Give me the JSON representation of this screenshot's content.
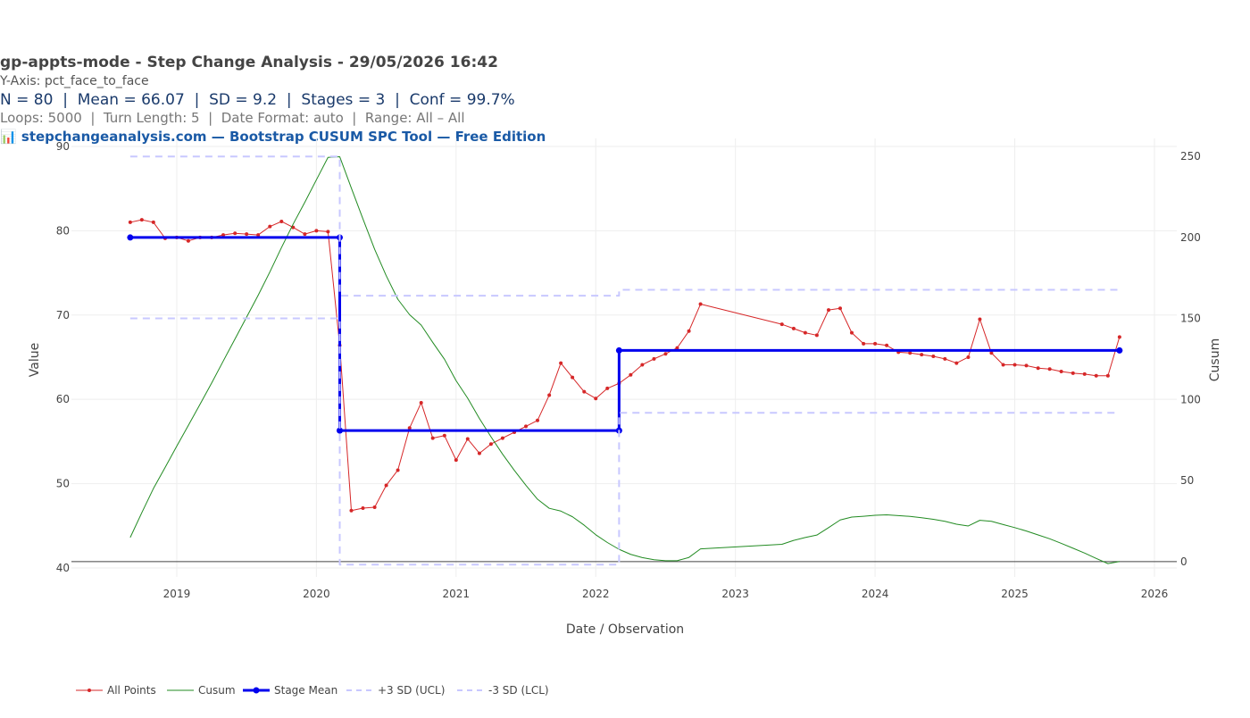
{
  "chart_data": {
    "type": "line",
    "title": "gp-appts-mode - Step Change Analysis - 29/05/2026 16:42",
    "subtitles": [
      "Y-Axis: pct_face_to_face",
      "N = 80  |  Mean = 66.07  |  SD = 9.2  |  Stages = 3  |  Conf = 99.7%",
      "Loops: 5000  |  Turn Length: 5  |  Date Format: auto  |  Range: All – All",
      "📊 stepchangeanalysis.com — Bootstrap CUSUM SPC Tool — Free Edition"
    ],
    "x_label": "Date / Observation",
    "y_label": "Value",
    "y2_label": "Cusum",
    "x": [
      2018.667,
      2018.75,
      2018.833,
      2018.917,
      2019,
      2019.083,
      2019.167,
      2019.25,
      2019.333,
      2019.417,
      2019.5,
      2019.583,
      2019.667,
      2019.75,
      2019.833,
      2019.917,
      2020,
      2020.083,
      2020.167,
      2020.25,
      2020.333,
      2020.417,
      2020.5,
      2020.583,
      2020.667,
      2020.75,
      2020.833,
      2020.917,
      2021,
      2021.083,
      2021.167,
      2021.25,
      2021.333,
      2021.417,
      2021.5,
      2021.583,
      2021.667,
      2021.75,
      2021.833,
      2021.917,
      2022,
      2022.083,
      2022.167,
      2022.25,
      2022.333,
      2022.417,
      2022.5,
      2022.583,
      2022.667,
      2022.75,
      2023.333,
      2023.417,
      2023.5,
      2023.583,
      2023.667,
      2023.75,
      2023.833,
      2023.917,
      2024,
      2024.083,
      2024.167,
      2024.25,
      2024.333,
      2024.417,
      2024.5,
      2024.583,
      2024.667,
      2024.75,
      2024.833,
      2024.917,
      2025,
      2025.083,
      2025.167,
      2025.25,
      2025.333,
      2025.417,
      2025.5,
      2025.583,
      2025.667,
      2025.75
    ],
    "series": [
      {
        "name": "All Points",
        "color": "#d62728",
        "width": 1,
        "markers": true,
        "values": [
          81.0,
          81.3,
          81.0,
          79.1,
          79.2,
          78.8,
          79.2,
          79.2,
          79.5,
          79.7,
          79.6,
          79.5,
          80.5,
          81.1,
          80.4,
          79.6,
          80.0,
          79.9,
          66.4,
          46.8,
          47.1,
          47.2,
          49.8,
          51.6,
          56.6,
          59.6,
          55.4,
          55.7,
          52.8,
          55.3,
          53.6,
          54.7,
          55.4,
          56.1,
          56.8,
          57.5,
          60.5,
          64.3,
          62.6,
          60.9,
          60.1,
          61.3,
          61.9,
          62.9,
          64.1,
          64.8,
          65.4,
          66.1,
          68.1,
          71.3,
          68.9,
          68.4,
          67.9,
          67.6,
          70.6,
          70.8,
          67.9,
          66.6,
          66.6,
          66.4,
          65.6,
          65.5,
          65.3,
          65.1,
          64.8,
          64.3,
          65.0,
          69.5,
          65.5,
          64.1,
          64.1,
          64.0,
          63.7,
          63.6,
          63.3,
          63.1,
          63.0,
          62.8,
          62.8,
          67.4
        ]
      },
      {
        "name": "Cusum",
        "color": "#228b22",
        "width": 1,
        "axis": "y2",
        "values": [
          14.9,
          30.2,
          45.1,
          58.1,
          71.2,
          84.0,
          97.1,
          110.2,
          123.7,
          137.3,
          150.8,
          164.3,
          178.7,
          193.7,
          208.1,
          221.6,
          235.5,
          249.3,
          249.7,
          230.4,
          211.4,
          192.6,
          176.3,
          161.8,
          152.3,
          145.9,
          135.2,
          124.8,
          111.6,
          100.8,
          88.3,
          77.0,
          66.3,
          56.3,
          47.1,
          38.5,
          32.9,
          31.2,
          27.7,
          22.5,
          16.6,
          11.8,
          7.6,
          4.5,
          2.5,
          1.2,
          0.6,
          0.6,
          2.6,
          7.9,
          10.7,
          13.1,
          14.9,
          16.4,
          21.0,
          25.7,
          27.5,
          28.0,
          28.6,
          28.9,
          28.4,
          27.9,
          27.1,
          26.1,
          24.9,
          23.1,
          22.0,
          25.5,
          24.9,
          22.9,
          21.0,
          18.9,
          16.5,
          14.1,
          11.3,
          8.3,
          5.3,
          2.0,
          -1.2,
          0.1
        ]
      },
      {
        "name": "Stage Mean",
        "color": "#0000ee",
        "width": 3,
        "markers": true,
        "x": [
          2018.667,
          2020.167,
          2020.167,
          2022.167,
          2022.167,
          2025.75
        ],
        "values": [
          79.2,
          79.2,
          56.3,
          56.3,
          65.8,
          65.8
        ]
      },
      {
        "name": "+3 SD (UCL)",
        "color": "#c8c8ff",
        "width": 2,
        "dash": true,
        "x": [
          2018.667,
          2020.167,
          2020.167,
          2022.167,
          2022.167,
          2025.75
        ],
        "values": [
          88.8,
          88.8,
          72.3,
          72.3,
          73.0,
          73.0
        ]
      },
      {
        "name": "-3 SD (LCL)",
        "color": "#c8c8ff",
        "width": 2,
        "dash": true,
        "x": [
          2018.667,
          2020.167,
          2020.167,
          2022.167,
          2022.167,
          2025.75
        ],
        "values": [
          69.6,
          69.6,
          40.4,
          40.4,
          58.4,
          58.4
        ]
      }
    ],
    "xlim": [
      2018.246,
      2026.16
    ],
    "xticks": [
      2019,
      2020,
      2021,
      2022,
      2023,
      2024,
      2025,
      2026
    ],
    "ylim": [
      38.94,
      90.95
    ],
    "yticks": [
      40,
      50,
      60,
      70,
      80,
      90
    ],
    "y2lim": [
      -9.4,
      261
    ],
    "y2ticks": [
      0,
      50,
      100,
      150,
      200,
      250
    ],
    "grid": true,
    "legend": "bottom"
  }
}
